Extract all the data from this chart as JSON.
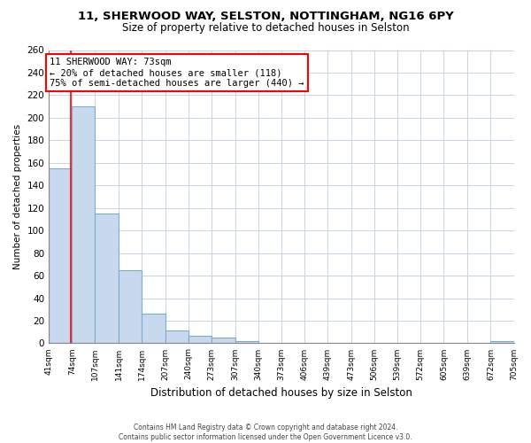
{
  "title_line1": "11, SHERWOOD WAY, SELSTON, NOTTINGHAM, NG16 6PY",
  "title_line2": "Size of property relative to detached houses in Selston",
  "xlabel": "Distribution of detached houses by size in Selston",
  "ylabel": "Number of detached properties",
  "bar_edges": [
    41,
    74,
    107,
    141,
    174,
    207,
    240,
    273,
    307,
    340,
    373,
    406,
    439,
    473,
    506,
    539,
    572,
    605,
    639,
    672,
    705
  ],
  "bar_heights": [
    155,
    210,
    115,
    65,
    26,
    11,
    7,
    5,
    2,
    0,
    0,
    0,
    0,
    0,
    0,
    0,
    0,
    0,
    0,
    2
  ],
  "bar_fill_color": "#c8d9ee",
  "bar_edge_color": "#7aadd4",
  "ylim": [
    0,
    260
  ],
  "yticks": [
    0,
    20,
    40,
    60,
    80,
    100,
    120,
    140,
    160,
    180,
    200,
    220,
    240,
    260
  ],
  "tick_labels": [
    "41sqm",
    "74sqm",
    "107sqm",
    "141sqm",
    "174sqm",
    "207sqm",
    "240sqm",
    "273sqm",
    "307sqm",
    "340sqm",
    "373sqm",
    "406sqm",
    "439sqm",
    "473sqm",
    "506sqm",
    "539sqm",
    "572sqm",
    "605sqm",
    "639sqm",
    "672sqm",
    "705sqm"
  ],
  "red_line_x": 73,
  "annotation_title": "11 SHERWOOD WAY: 73sqm",
  "annotation_line1": "← 20% of detached houses are smaller (118)",
  "annotation_line2": "75% of semi-detached houses are larger (440) →",
  "footer_line1": "Contains HM Land Registry data © Crown copyright and database right 2024.",
  "footer_line2": "Contains public sector information licensed under the Open Government Licence v3.0.",
  "background_color": "#ffffff",
  "grid_color": "#c8d4e3",
  "title1_fontsize": 9.5,
  "title2_fontsize": 8.5,
  "xlabel_fontsize": 8.5,
  "ylabel_fontsize": 7.5,
  "tick_fontsize": 6.5,
  "ytick_fontsize": 7.5,
  "footer_fontsize": 5.5,
  "annot_fontsize": 7.5
}
